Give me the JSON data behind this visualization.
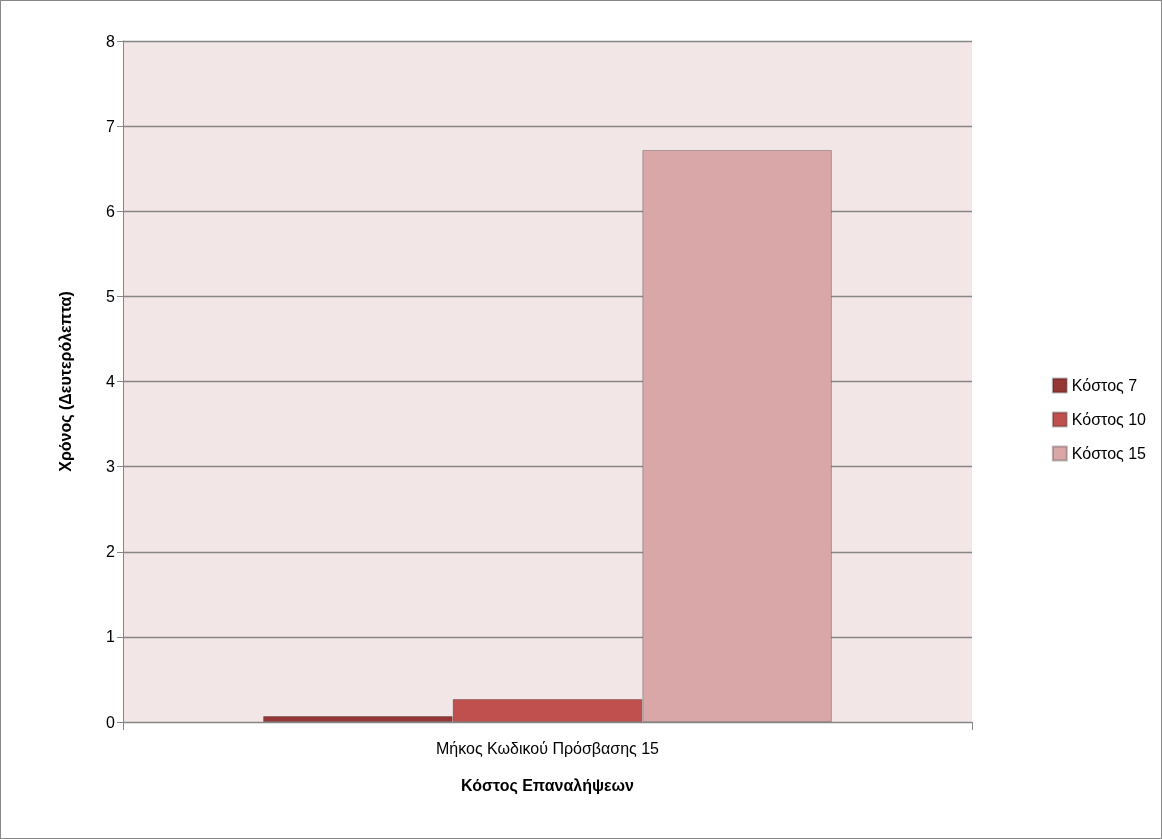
{
  "chart_data": {
    "type": "bar",
    "xlabel": "Κόστος Επαναλήψεων",
    "ylabel": "Χρόνος (Δευτερόλεπτα)",
    "categories": [
      "Μήκος Κωδικού Πρόσβασης 15"
    ],
    "series": [
      {
        "name": "Κόστος 7",
        "color": "#953735",
        "values": [
          0.07
        ]
      },
      {
        "name": "Κόστος 10",
        "color": "#c0504d",
        "values": [
          0.27
        ]
      },
      {
        "name": "Κόστος 15",
        "color": "#d9a7a8",
        "values": [
          6.72
        ]
      }
    ],
    "ylim": [
      0,
      8
    ],
    "yticks": [
      0,
      1,
      2,
      3,
      4,
      5,
      6,
      7,
      8
    ],
    "grid": "y",
    "legend": "right"
  }
}
